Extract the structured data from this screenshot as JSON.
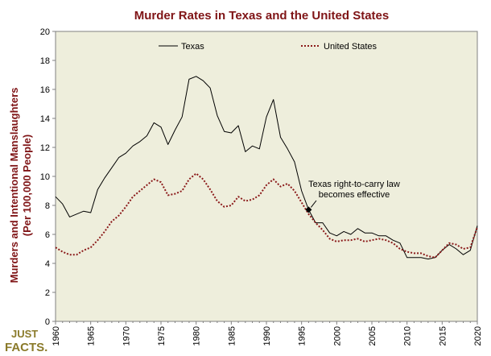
{
  "chart_data": {
    "type": "line",
    "title": "Murder Rates in Texas and the United States",
    "xlabel": "",
    "ylabel": [
      "Murders and Intentional Manslaughters",
      "(Per 100,000 People)"
    ],
    "xlim": [
      1960,
      2020
    ],
    "ylim": [
      0,
      20
    ],
    "x_ticks": [
      1960,
      1965,
      1970,
      1975,
      1980,
      1985,
      1990,
      1995,
      2000,
      2005,
      2010,
      2015,
      2020
    ],
    "y_ticks": [
      0,
      2,
      4,
      6,
      8,
      10,
      12,
      14,
      16,
      18,
      20
    ],
    "grid": false,
    "legend_position": "top",
    "background": "#eeeedc",
    "series": [
      {
        "name": "Texas",
        "style": "solid",
        "color": "#000000",
        "x": [
          1960,
          1961,
          1962,
          1963,
          1964,
          1965,
          1966,
          1967,
          1968,
          1969,
          1970,
          1971,
          1972,
          1973,
          1974,
          1975,
          1976,
          1977,
          1978,
          1979,
          1980,
          1981,
          1982,
          1983,
          1984,
          1985,
          1986,
          1987,
          1988,
          1989,
          1990,
          1991,
          1992,
          1993,
          1994,
          1995,
          1996,
          1997,
          1998,
          1999,
          2000,
          2001,
          2002,
          2003,
          2004,
          2005,
          2006,
          2007,
          2008,
          2009,
          2010,
          2011,
          2012,
          2013,
          2014,
          2015,
          2016,
          2017,
          2018,
          2019,
          2020
        ],
        "values": [
          8.6,
          8.1,
          7.2,
          7.4,
          7.6,
          7.5,
          9.1,
          9.9,
          10.6,
          11.3,
          11.6,
          12.1,
          12.4,
          12.8,
          13.7,
          13.4,
          12.2,
          13.2,
          14.1,
          16.7,
          16.9,
          16.6,
          16.1,
          14.2,
          13.1,
          13.0,
          13.5,
          11.7,
          12.1,
          11.9,
          14.1,
          15.3,
          12.7,
          11.9,
          11.0,
          9.0,
          7.7,
          6.8,
          6.8,
          6.1,
          5.9,
          6.2,
          6.0,
          6.4,
          6.1,
          6.1,
          5.9,
          5.9,
          5.6,
          5.4,
          4.4,
          4.4,
          4.4,
          4.3,
          4.4,
          4.9,
          5.3,
          5.0,
          4.6,
          4.9,
          6.6
        ]
      },
      {
        "name": "United States",
        "style": "dotted",
        "color": "#8b1a1a",
        "x": [
          1960,
          1961,
          1962,
          1963,
          1964,
          1965,
          1966,
          1967,
          1968,
          1969,
          1970,
          1971,
          1972,
          1973,
          1974,
          1975,
          1976,
          1977,
          1978,
          1979,
          1980,
          1981,
          1982,
          1983,
          1984,
          1985,
          1986,
          1987,
          1988,
          1989,
          1990,
          1991,
          1992,
          1993,
          1994,
          1995,
          1996,
          1997,
          1998,
          1999,
          2000,
          2001,
          2002,
          2003,
          2004,
          2005,
          2006,
          2007,
          2008,
          2009,
          2010,
          2011,
          2012,
          2013,
          2014,
          2015,
          2016,
          2017,
          2018,
          2019,
          2020
        ],
        "values": [
          5.1,
          4.8,
          4.6,
          4.6,
          4.9,
          5.1,
          5.6,
          6.2,
          6.9,
          7.3,
          7.9,
          8.6,
          9.0,
          9.4,
          9.8,
          9.6,
          8.7,
          8.8,
          9.0,
          9.8,
          10.2,
          9.8,
          9.1,
          8.3,
          7.9,
          8.0,
          8.6,
          8.3,
          8.4,
          8.7,
          9.4,
          9.8,
          9.3,
          9.5,
          9.0,
          8.2,
          7.4,
          6.8,
          6.3,
          5.7,
          5.5,
          5.6,
          5.6,
          5.7,
          5.5,
          5.6,
          5.7,
          5.6,
          5.4,
          5.0,
          4.8,
          4.7,
          4.7,
          4.5,
          4.4,
          4.9,
          5.4,
          5.3,
          5.0,
          5.1,
          6.5
        ]
      }
    ],
    "annotations": [
      {
        "lines": [
          "Texas right-to-carry law",
          "becomes effective"
        ],
        "x": 1996,
        "y": 7.7
      }
    ]
  },
  "logo": [
    "JUST",
    "FACTS."
  ]
}
